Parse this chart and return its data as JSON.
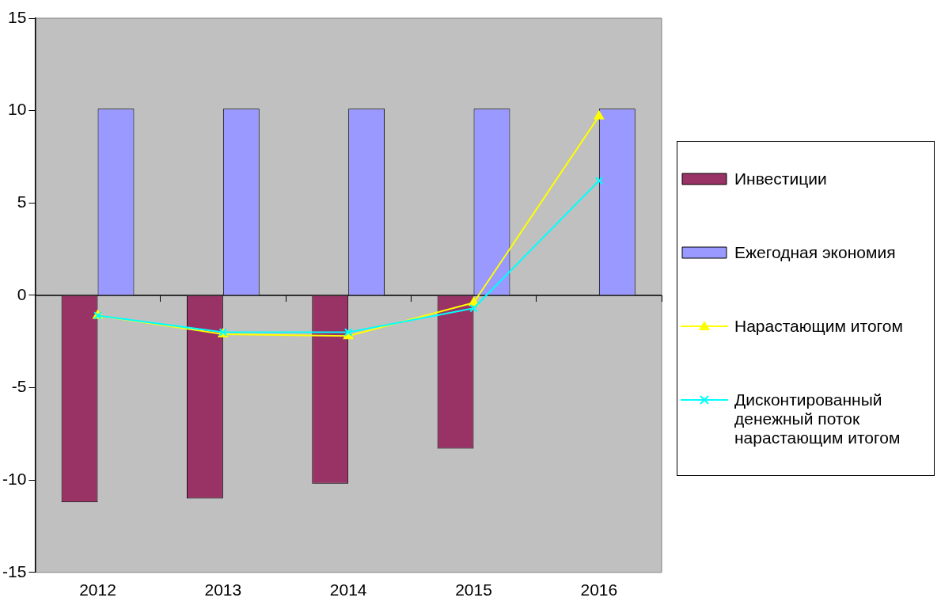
{
  "chart_data": {
    "type": "bar",
    "categories": [
      "2012",
      "2013",
      "2014",
      "2015",
      "2016"
    ],
    "series": [
      {
        "name": "Инвестиции",
        "color": "#993366",
        "values": [
          -11.2,
          -11.0,
          -10.2,
          -8.3,
          null
        ]
      },
      {
        "name": "Ежегодная экономия",
        "color": "#9999ff",
        "values": [
          10.1,
          10.1,
          10.1,
          10.1,
          10.1
        ]
      },
      {
        "name": "Нарастающим итогом",
        "type": "line",
        "color": "#ffff00",
        "marker": "triangle",
        "values": [
          -1.1,
          -2.1,
          -2.2,
          -0.4,
          9.7
        ]
      },
      {
        "name": "Дисконтированный денежный поток нарастающим итогом",
        "type": "line",
        "color": "#00ffff",
        "marker": "cross",
        "values": [
          -1.1,
          -2.0,
          -2.0,
          -0.7,
          6.2
        ]
      }
    ],
    "ylim": [
      -15,
      15
    ],
    "yticks": [
      -15,
      -10,
      -5,
      0,
      5,
      10,
      15
    ],
    "ref_lines": [
      {
        "axis": "y",
        "value": 0,
        "color": "#000000"
      }
    ],
    "grid": false,
    "legend": "right"
  }
}
